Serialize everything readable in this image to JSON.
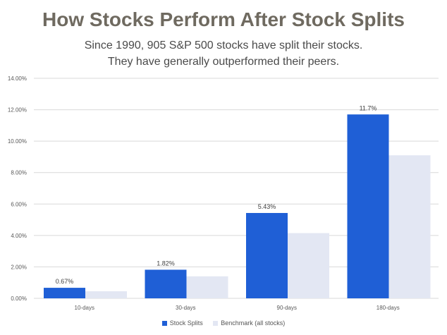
{
  "title": "How Stocks Perform After Stock Splits",
  "subtitle_line1": "Since 1990, 905 S&P 500 stocks have split their stocks.",
  "subtitle_line2": "They have generally outperformed their peers.",
  "colors": {
    "stock_splits": "#1f5fd6",
    "benchmark": "#e3e7f3",
    "grid": "#d9d9d9",
    "axis_text": "#595959"
  },
  "chart_data": {
    "type": "bar",
    "categories": [
      "10-days",
      "30-days",
      "90-days",
      "180-days"
    ],
    "series": [
      {
        "name": "Stock Splits",
        "values": [
          0.67,
          1.82,
          5.43,
          11.7
        ],
        "labels": [
          "0.67%",
          "1.82%",
          "5.43%",
          "11.7%"
        ]
      },
      {
        "name": "Benchmark (all stocks)",
        "values": [
          0.45,
          1.4,
          4.15,
          9.1
        ]
      }
    ],
    "ylim": [
      0,
      14
    ],
    "yticks": [
      "0.00%",
      "2.00%",
      "4.00%",
      "6.00%",
      "8.00%",
      "10.00%",
      "12.00%",
      "14.00%"
    ],
    "grid": true,
    "legend": "bottom"
  }
}
